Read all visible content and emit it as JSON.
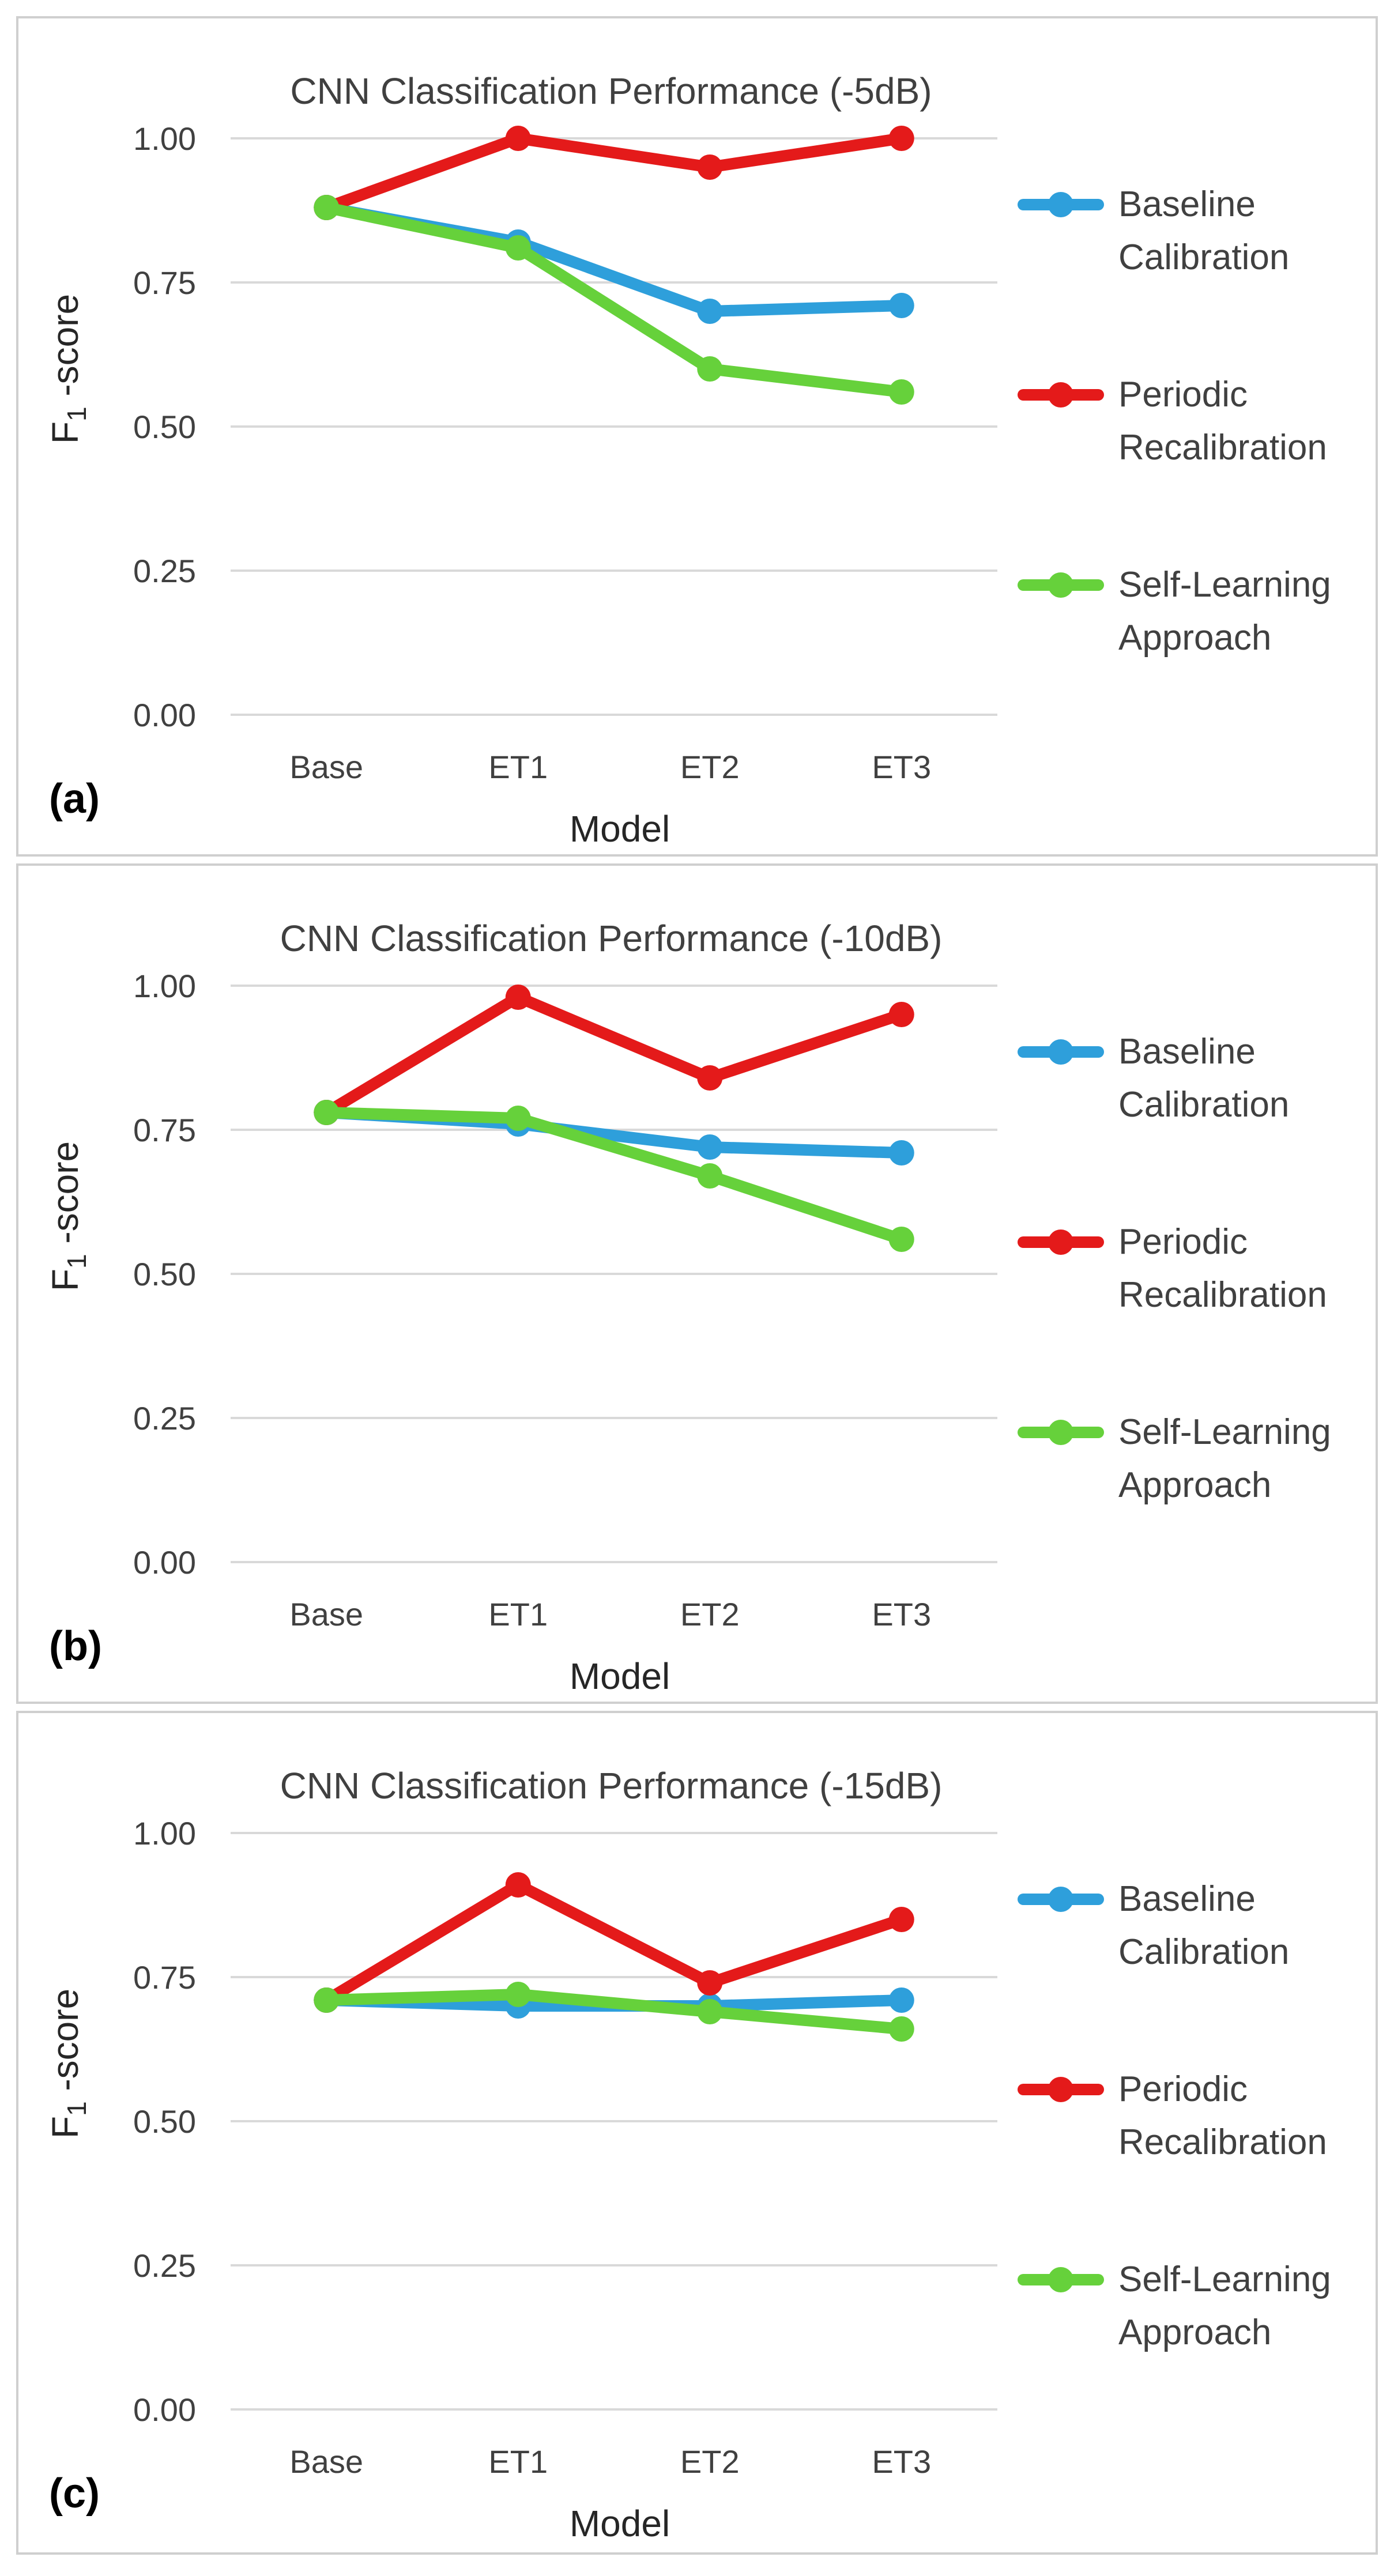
{
  "colors": {
    "Baseline Calibration": "#2e9fdb",
    "Periodic Recalibration": "#e41a1a",
    "Self-Learning Approach": "#66d13b"
  },
  "chart_data": [
    {
      "type": "line",
      "panel_label": "(a)",
      "title": "CNN Classification Performance (-5dB)",
      "xlabel": "Model",
      "ylabel": "F1 -score",
      "categories": [
        "Base",
        "ET1",
        "ET2",
        "ET3"
      ],
      "yticks": [
        "0.00",
        "0.25",
        "0.50",
        "0.75",
        "1.00"
      ],
      "ylim": [
        0,
        1.15
      ],
      "grid": true,
      "legend_position": "right",
      "series": [
        {
          "name": "Baseline Calibration",
          "legend_lines": [
            "Baseline",
            "Calibration"
          ],
          "values": [
            0.88,
            0.82,
            0.7,
            0.71
          ]
        },
        {
          "name": "Periodic Recalibration",
          "legend_lines": [
            "Periodic",
            "Recalibration"
          ],
          "values": [
            0.88,
            1.0,
            0.95,
            1.0
          ]
        },
        {
          "name": "Self-Learning Approach",
          "legend_lines": [
            "Self-Learning",
            "Approach"
          ],
          "values": [
            0.88,
            0.81,
            0.6,
            0.56
          ]
        }
      ]
    },
    {
      "type": "line",
      "panel_label": "(b)",
      "title": "CNN Classification Performance (-10dB)",
      "xlabel": "Model",
      "ylabel": "F1 -score",
      "categories": [
        "Base",
        "ET1",
        "ET2",
        "ET3"
      ],
      "yticks": [
        "0.00",
        "0.25",
        "0.50",
        "0.75",
        "1.00"
      ],
      "ylim": [
        0,
        1.15
      ],
      "grid": true,
      "legend_position": "right",
      "series": [
        {
          "name": "Baseline Calibration",
          "legend_lines": [
            "Baseline",
            "Calibration"
          ],
          "values": [
            0.78,
            0.76,
            0.72,
            0.71
          ]
        },
        {
          "name": "Periodic Recalibration",
          "legend_lines": [
            "Periodic",
            "Recalibration"
          ],
          "values": [
            0.78,
            0.98,
            0.84,
            0.95
          ]
        },
        {
          "name": "Self-Learning Approach",
          "legend_lines": [
            "Self-Learning",
            "Approach"
          ],
          "values": [
            0.78,
            0.77,
            0.67,
            0.56
          ]
        }
      ]
    },
    {
      "type": "line",
      "panel_label": "(c)",
      "title": "CNN Classification Performance (-15dB)",
      "xlabel": "Model",
      "ylabel": "F1 -score",
      "categories": [
        "Base",
        "ET1",
        "ET2",
        "ET3"
      ],
      "yticks": [
        "0.00",
        "0.25",
        "0.50",
        "0.75",
        "1.00"
      ],
      "ylim": [
        0,
        1.15
      ],
      "grid": true,
      "legend_position": "right",
      "series": [
        {
          "name": "Baseline Calibration",
          "legend_lines": [
            "Baseline",
            "Calibration"
          ],
          "values": [
            0.71,
            0.7,
            0.7,
            0.71
          ]
        },
        {
          "name": "Periodic Recalibration",
          "legend_lines": [
            "Periodic",
            "Recalibration"
          ],
          "values": [
            0.71,
            0.91,
            0.74,
            0.85
          ]
        },
        {
          "name": "Self-Learning Approach",
          "legend_lines": [
            "Self-Learning",
            "Approach"
          ],
          "values": [
            0.71,
            0.72,
            0.69,
            0.66
          ]
        }
      ]
    }
  ]
}
